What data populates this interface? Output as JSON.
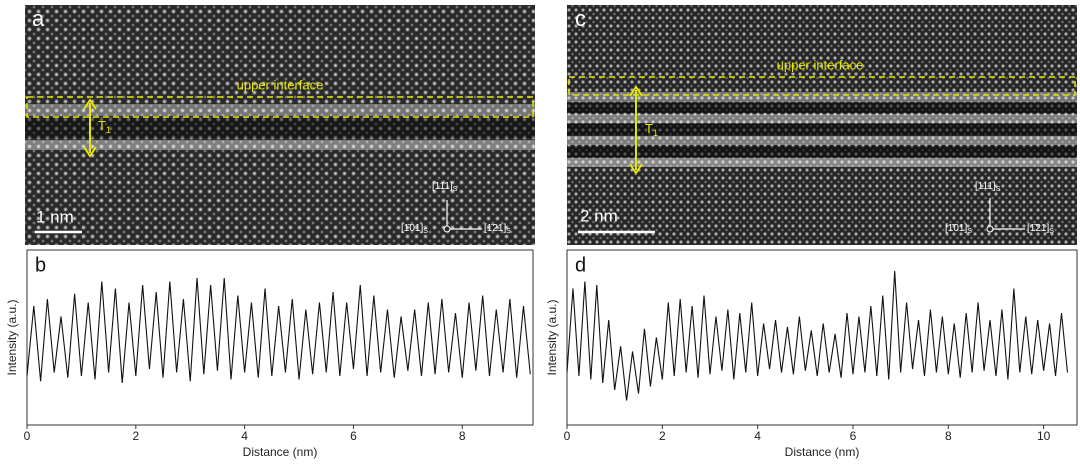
{
  "images": [
    {
      "panel": "a",
      "annotation": "upper interface",
      "thickness": {
        "symbol": "T",
        "sub": "1"
      },
      "scale_bar": "1 nm",
      "axes": [
        {
          "index": "[111]",
          "sub": "S"
        },
        {
          "index": "[1̄01]",
          "sub": "S"
        },
        {
          "index": "[1̄21]",
          "sub": "S"
        }
      ]
    },
    {
      "panel": "c",
      "annotation": "upper interface",
      "thickness": {
        "symbol": "T",
        "sub": "1"
      },
      "scale_bar": "2 nm",
      "axes": [
        {
          "index": "[111]",
          "sub": "S"
        },
        {
          "index": "[1̄01]",
          "sub": "S"
        },
        {
          "index": "[1̄21]",
          "sub": "S"
        }
      ]
    }
  ],
  "chart_data": [
    {
      "type": "line",
      "panel": "b",
      "xlabel": "Distance (nm)",
      "ylabel": "Intensity (a.u.)",
      "xlim": [
        0,
        9.3
      ],
      "ylim": [
        0,
        100
      ],
      "xticks": [
        0,
        2,
        4,
        6,
        8
      ],
      "x": [
        0,
        0.125,
        0.25,
        0.375,
        0.5,
        0.625,
        0.75,
        0.875,
        1,
        1.125,
        1.25,
        1.375,
        1.5,
        1.625,
        1.75,
        1.875,
        2,
        2.125,
        2.25,
        2.375,
        2.5,
        2.625,
        2.75,
        2.875,
        3,
        3.125,
        3.25,
        3.375,
        3.5,
        3.625,
        3.75,
        3.875,
        4,
        4.125,
        4.25,
        4.375,
        4.5,
        4.625,
        4.75,
        4.875,
        5,
        5.125,
        5.25,
        5.375,
        5.5,
        5.625,
        5.75,
        5.875,
        6,
        6.125,
        6.25,
        6.375,
        6.5,
        6.625,
        6.75,
        6.875,
        7,
        7.125,
        7.25,
        7.375,
        7.5,
        7.625,
        7.75,
        7.875,
        8,
        8.125,
        8.25,
        8.375,
        8.5,
        8.625,
        8.75,
        8.875,
        9,
        9.125,
        9.25
      ],
      "series": [
        {
          "color": "#111111",
          "values": [
            28,
            68,
            25,
            72,
            30,
            62,
            27,
            75,
            28,
            70,
            26,
            82,
            30,
            78,
            24,
            70,
            28,
            80,
            32,
            76,
            27,
            82,
            30,
            72,
            25,
            84,
            29,
            80,
            31,
            84,
            26,
            74,
            30,
            70,
            27,
            78,
            28,
            68,
            30,
            72,
            26,
            66,
            29,
            70,
            30,
            76,
            28,
            70,
            32,
            80,
            28,
            74,
            30,
            66,
            27,
            62,
            31,
            66,
            28,
            70,
            29,
            72,
            30,
            64,
            27,
            70,
            31,
            74,
            28,
            66,
            30,
            72,
            27,
            68,
            29
          ]
        }
      ]
    },
    {
      "type": "line",
      "panel": "d",
      "xlabel": "Distance (nm)",
      "ylabel": "Intensity (a.u.)",
      "xlim": [
        0,
        10.7
      ],
      "ylim": [
        0,
        100
      ],
      "xticks": [
        0,
        2,
        4,
        6,
        8,
        10
      ],
      "x": [
        0,
        0.125,
        0.25,
        0.375,
        0.5,
        0.625,
        0.75,
        0.875,
        1,
        1.125,
        1.25,
        1.375,
        1.5,
        1.625,
        1.75,
        1.875,
        2,
        2.125,
        2.25,
        2.375,
        2.5,
        2.625,
        2.75,
        2.875,
        3,
        3.125,
        3.25,
        3.375,
        3.5,
        3.625,
        3.75,
        3.875,
        4,
        4.125,
        4.25,
        4.375,
        4.5,
        4.625,
        4.75,
        4.875,
        5,
        5.125,
        5.25,
        5.375,
        5.5,
        5.625,
        5.75,
        5.875,
        6,
        6.125,
        6.25,
        6.375,
        6.5,
        6.625,
        6.75,
        6.875,
        7,
        7.125,
        7.25,
        7.375,
        7.5,
        7.625,
        7.75,
        7.875,
        8,
        8.125,
        8.25,
        8.375,
        8.5,
        8.625,
        8.75,
        8.875,
        9,
        9.125,
        9.25,
        9.375,
        9.5,
        9.625,
        9.75,
        9.875,
        10,
        10.125,
        10.25,
        10.375,
        10.5
      ],
      "series": [
        {
          "color": "#111111",
          "values": [
            30,
            78,
            28,
            82,
            26,
            80,
            24,
            60,
            20,
            45,
            14,
            42,
            18,
            55,
            22,
            50,
            26,
            70,
            28,
            72,
            30,
            68,
            27,
            74,
            29,
            62,
            31,
            66,
            26,
            64,
            30,
            70,
            28,
            58,
            32,
            60,
            30,
            56,
            29,
            62,
            31,
            54,
            28,
            58,
            30,
            52,
            27,
            64,
            29,
            62,
            30,
            68,
            28,
            74,
            26,
            88,
            30,
            70,
            32,
            60,
            28,
            66,
            30,
            62,
            29,
            58,
            27,
            64,
            30,
            70,
            31,
            60,
            28,
            66,
            26,
            78,
            30,
            62,
            29,
            60,
            31,
            58,
            28,
            64,
            30
          ]
        }
      ]
    }
  ]
}
